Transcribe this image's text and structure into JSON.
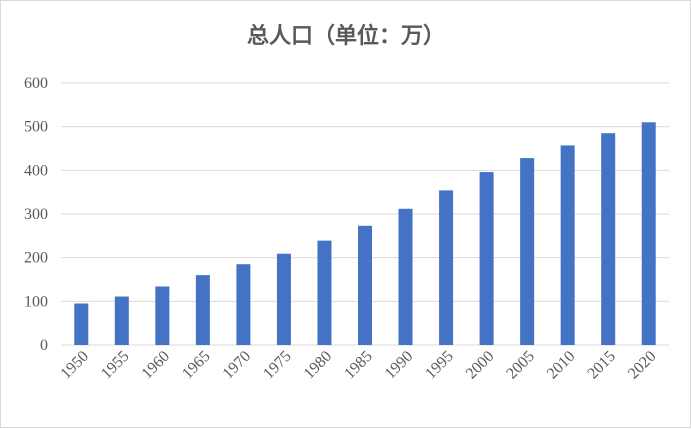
{
  "chart_data": {
    "type": "bar",
    "title": "总人口（单位：万）",
    "xlabel": "",
    "ylabel": "",
    "categories": [
      "1950",
      "1955",
      "1960",
      "1965",
      "1970",
      "1975",
      "1980",
      "1985",
      "1990",
      "1995",
      "2000",
      "2005",
      "2010",
      "2015",
      "2020"
    ],
    "values": [
      95,
      111,
      134,
      160,
      185,
      209,
      239,
      273,
      312,
      354,
      396,
      428,
      457,
      485,
      510
    ],
    "ylim": [
      0,
      600
    ],
    "yticks": [
      "0",
      "100",
      "200",
      "300",
      "400",
      "500",
      "600"
    ],
    "grid": true,
    "bar_color": "#4472c4",
    "gridline_color": "#d9d9d9",
    "text_color": "#595959"
  }
}
